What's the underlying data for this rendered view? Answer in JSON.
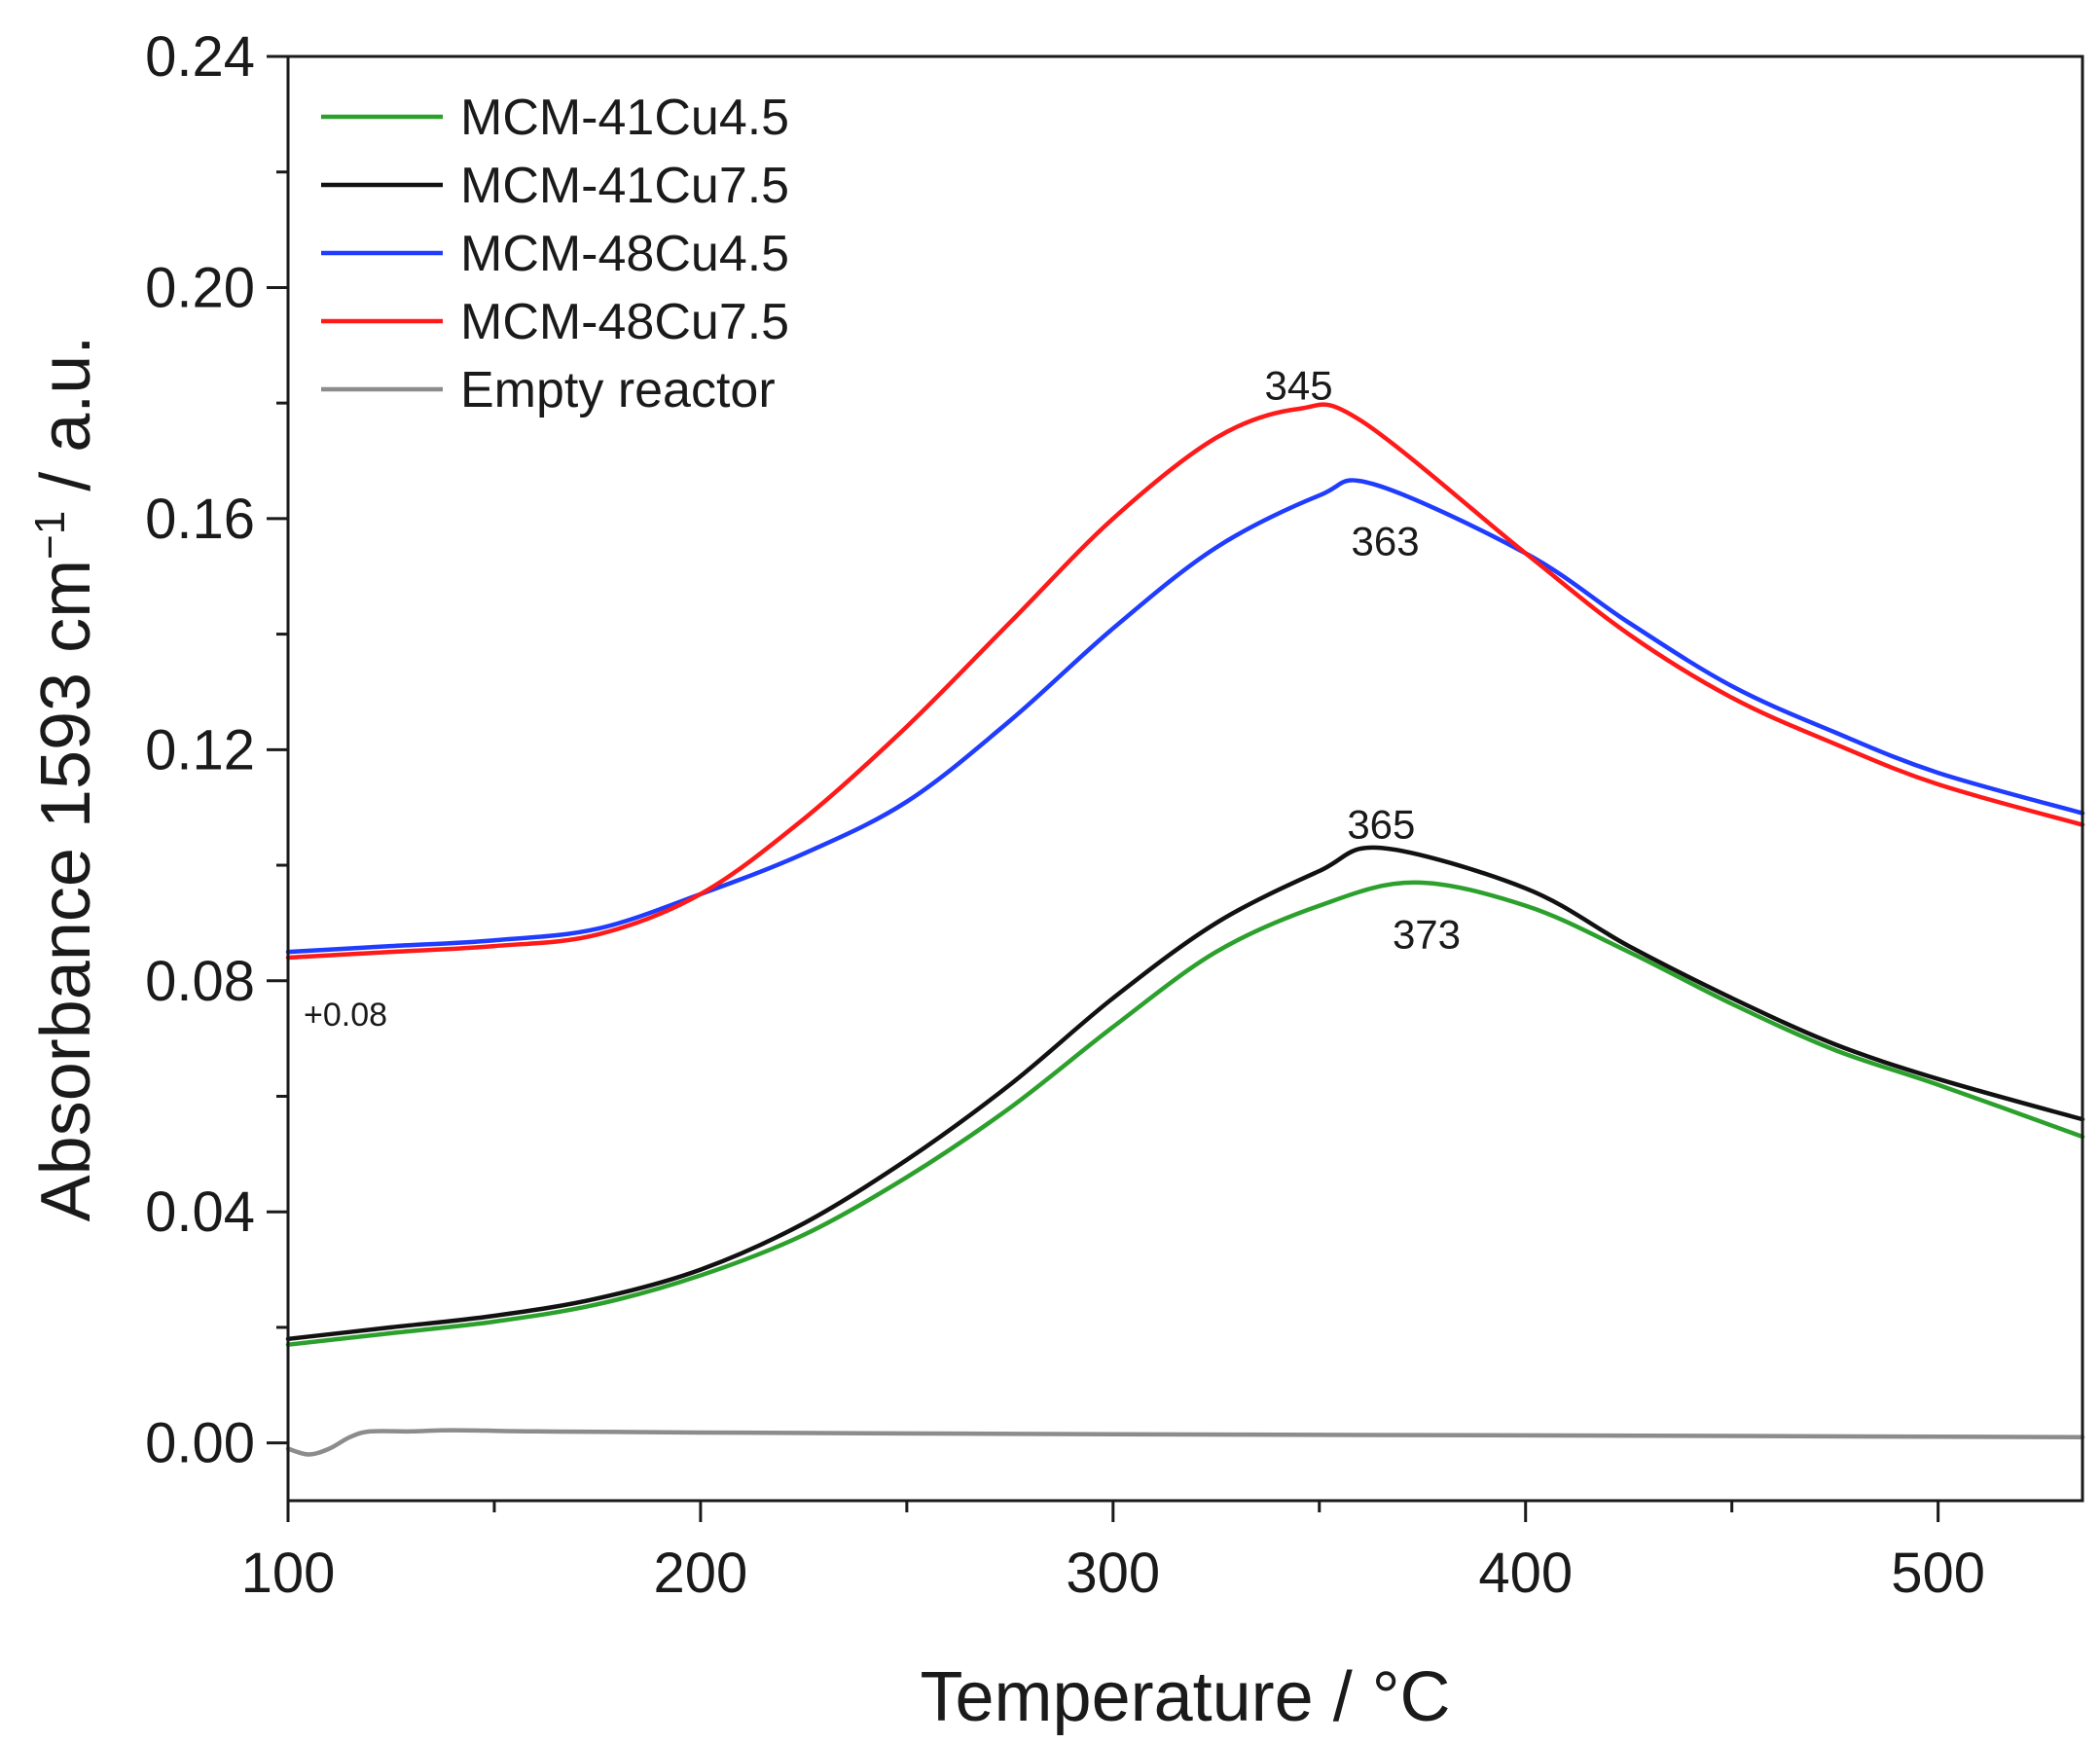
{
  "chart_data": {
    "type": "line",
    "title": "",
    "xlabel": "Temperature / °C",
    "ylabel_main": "Absorbance 1593 cm",
    "ylabel_sup": "−1",
    "ylabel_tail": " / a.u.",
    "xlim": [
      100,
      535
    ],
    "ylim": [
      -0.01,
      0.24
    ],
    "x_ticks": [
      100,
      200,
      300,
      400,
      500
    ],
    "x_tick_labels": [
      "100",
      "200",
      "300",
      "400",
      "500"
    ],
    "x_minor_ticks": [
      150,
      250,
      350,
      450
    ],
    "y_ticks": [
      0.0,
      0.04,
      0.08,
      0.12,
      0.16,
      0.2,
      0.24
    ],
    "y_tick_labels": [
      "0.00",
      "0.04",
      "0.08",
      "0.12",
      "0.16",
      "0.20",
      "0.24"
    ],
    "y_minor_ticks": [
      0.02,
      0.06,
      0.1,
      0.14,
      0.18,
      0.22
    ],
    "grid": false,
    "legend_position": "top-left",
    "offset_annotation": "+0.08",
    "series": [
      {
        "name": "MCM-41Cu4.5",
        "color": "#2ca02c",
        "x": [
          100,
          125,
          150,
          175,
          200,
          225,
          250,
          275,
          300,
          325,
          350,
          373,
          400,
          425,
          450,
          475,
          500,
          535
        ],
        "y": [
          0.017,
          0.019,
          0.021,
          0.024,
          0.029,
          0.036,
          0.046,
          0.058,
          0.072,
          0.085,
          0.093,
          0.097,
          0.093,
          0.085,
          0.076,
          0.068,
          0.062,
          0.053
        ]
      },
      {
        "name": "MCM-41Cu7.5",
        "color": "#111111",
        "x": [
          100,
          125,
          150,
          175,
          200,
          225,
          250,
          275,
          300,
          325,
          350,
          365,
          400,
          425,
          450,
          475,
          500,
          535
        ],
        "y": [
          0.018,
          0.02,
          0.022,
          0.025,
          0.03,
          0.038,
          0.049,
          0.062,
          0.077,
          0.09,
          0.099,
          0.103,
          0.096,
          0.086,
          0.077,
          0.069,
          0.063,
          0.056
        ]
      },
      {
        "name": "MCM-48Cu4.5",
        "color": "#1f3cff",
        "x": [
          100,
          125,
          150,
          175,
          200,
          225,
          250,
          275,
          300,
          325,
          350,
          363,
          400,
          425,
          450,
          475,
          500,
          535
        ],
        "y": [
          0.085,
          0.086,
          0.087,
          0.089,
          0.095,
          0.102,
          0.111,
          0.125,
          0.141,
          0.155,
          0.164,
          0.166,
          0.154,
          0.142,
          0.131,
          0.123,
          0.116,
          0.109
        ]
      },
      {
        "name": "MCM-48Cu7.5",
        "color": "#ff1a1a",
        "x": [
          100,
          125,
          150,
          175,
          200,
          225,
          250,
          275,
          300,
          325,
          345,
          360,
          400,
          425,
          450,
          475,
          500,
          535
        ],
        "y": [
          0.084,
          0.085,
          0.086,
          0.088,
          0.095,
          0.108,
          0.124,
          0.142,
          0.16,
          0.174,
          0.179,
          0.177,
          0.154,
          0.14,
          0.129,
          0.121,
          0.114,
          0.107
        ]
      },
      {
        "name": "Empty reactor",
        "color": "#8c8c8c",
        "x": [
          100,
          105,
          110,
          115,
          120,
          130,
          140,
          160,
          200,
          300,
          400,
          535
        ],
        "y": [
          -0.001,
          -0.002,
          -0.001,
          0.001,
          0.002,
          0.002,
          0.0022,
          0.002,
          0.0018,
          0.0015,
          0.0013,
          0.001
        ]
      }
    ],
    "annotations": [
      {
        "text": "345",
        "x": 345,
        "y": 0.183
      },
      {
        "text": "363",
        "x": 366,
        "y": 0.156
      },
      {
        "text": "365",
        "x": 365,
        "y": 0.107
      },
      {
        "text": "373",
        "x": 376,
        "y": 0.088
      }
    ]
  }
}
